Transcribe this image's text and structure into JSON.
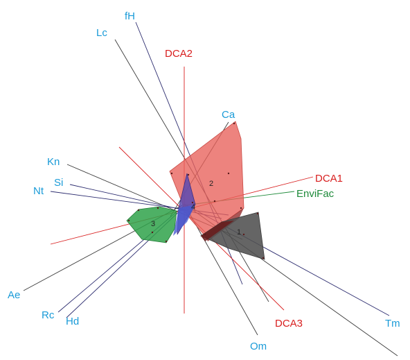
{
  "colors": {
    "axis": "#d81e1e",
    "variable_label": "#1a9bd8",
    "variable_line_a": "#2b2b6e",
    "variable_line_b": "#3a3a3a",
    "envifac": "#1e8a3a",
    "cluster_1": "#505050",
    "cluster_2": "#e8605a",
    "cluster_3": "#2fa24a",
    "cluster_4": "#5a4ab0"
  },
  "axes": [
    {
      "key": "dca1",
      "label": "DCA1"
    },
    {
      "key": "dca2",
      "label": "DCA2"
    },
    {
      "key": "dca3",
      "label": "DCA3"
    }
  ],
  "envifac": {
    "label": "EnviFac"
  },
  "variables": [
    {
      "key": "fh",
      "label": "fH"
    },
    {
      "key": "lc",
      "label": "Lc"
    },
    {
      "key": "ca",
      "label": "Ca"
    },
    {
      "key": "kn",
      "label": "Kn"
    },
    {
      "key": "si",
      "label": "Si"
    },
    {
      "key": "nt",
      "label": "Nt"
    },
    {
      "key": "ae",
      "label": "Ae"
    },
    {
      "key": "rc",
      "label": "Rc"
    },
    {
      "key": "hd",
      "label": "Hd"
    },
    {
      "key": "om",
      "label": "Om"
    },
    {
      "key": "tm",
      "label": "Tm"
    }
  ],
  "clusters": [
    {
      "key": "c1",
      "label": "1"
    },
    {
      "key": "c2",
      "label": "2"
    },
    {
      "key": "c3",
      "label": "3"
    },
    {
      "key": "c4",
      "label": "4"
    }
  ]
}
